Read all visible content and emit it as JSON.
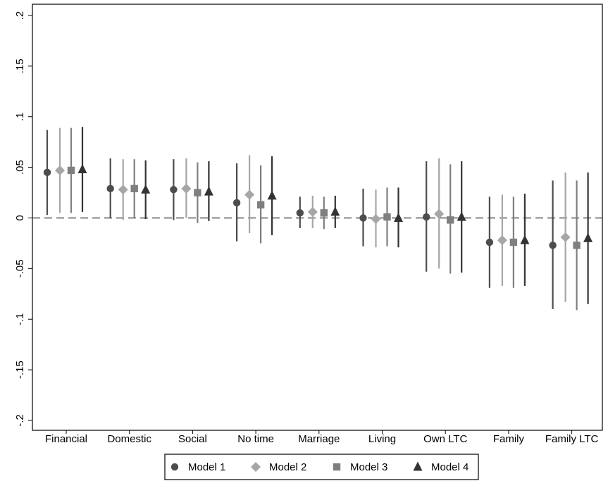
{
  "chart_data": {
    "type": "scatter",
    "subtype": "coefficient-plot-with-confidence-intervals",
    "categories": [
      "Financial",
      "Domestic",
      "Social",
      "No time",
      "Marriage",
      "Living",
      "Own LTC",
      "Family",
      "Family LTC"
    ],
    "ylim": [
      -0.2,
      0.2
    ],
    "yticks": [
      {
        "value": 0.2,
        "label": ".2"
      },
      {
        "value": 0.15,
        "label": ".15"
      },
      {
        "value": 0.1,
        "label": ".1"
      },
      {
        "value": 0.05,
        "label": ".05"
      },
      {
        "value": 0,
        "label": "0"
      },
      {
        "value": -0.05,
        "label": "-.05"
      },
      {
        "value": -0.1,
        "label": "-.1"
      },
      {
        "value": -0.15,
        "label": "-.15"
      },
      {
        "value": -0.2,
        "label": "-.2"
      }
    ],
    "reference_line": {
      "y": 0,
      "style": "dashed"
    },
    "grid": false,
    "legend_position": "bottom",
    "series": [
      {
        "name": "Model 1",
        "marker": "circle",
        "color": "#4d4d4d",
        "values": [
          0.045,
          0.029,
          0.028,
          0.015,
          0.005,
          0.0,
          0.001,
          -0.024,
          -0.027
        ],
        "lower": [
          0.003,
          0.0,
          -0.002,
          -0.023,
          -0.01,
          -0.028,
          -0.053,
          -0.069,
          -0.09
        ],
        "upper": [
          0.087,
          0.059,
          0.058,
          0.054,
          0.021,
          0.029,
          0.056,
          0.021,
          0.037
        ]
      },
      {
        "name": "Model 2",
        "marker": "diamond",
        "color": "#a6a6a6",
        "values": [
          0.047,
          0.028,
          0.029,
          0.023,
          0.006,
          -0.001,
          0.004,
          -0.022,
          -0.019
        ],
        "lower": [
          0.005,
          -0.002,
          0.0,
          -0.015,
          -0.01,
          -0.029,
          -0.05,
          -0.067,
          -0.083
        ],
        "upper": [
          0.089,
          0.058,
          0.059,
          0.062,
          0.022,
          0.028,
          0.059,
          0.023,
          0.045
        ]
      },
      {
        "name": "Model 3",
        "marker": "square",
        "color": "#7f7f7f",
        "values": [
          0.047,
          0.029,
          0.025,
          0.013,
          0.005,
          0.001,
          -0.002,
          -0.024,
          -0.027
        ],
        "lower": [
          0.005,
          0.0,
          -0.005,
          -0.025,
          -0.011,
          -0.028,
          -0.055,
          -0.069,
          -0.091
        ],
        "upper": [
          0.089,
          0.058,
          0.055,
          0.052,
          0.021,
          0.03,
          0.053,
          0.021,
          0.037
        ]
      },
      {
        "name": "Model 4",
        "marker": "triangle",
        "color": "#333333",
        "values": [
          0.048,
          0.028,
          0.026,
          0.022,
          0.006,
          0.0,
          0.001,
          -0.022,
          -0.02
        ],
        "lower": [
          0.006,
          -0.001,
          -0.003,
          -0.017,
          -0.01,
          -0.029,
          -0.054,
          -0.067,
          -0.085
        ],
        "upper": [
          0.09,
          0.057,
          0.056,
          0.061,
          0.022,
          0.03,
          0.056,
          0.024,
          0.045
        ]
      }
    ]
  }
}
